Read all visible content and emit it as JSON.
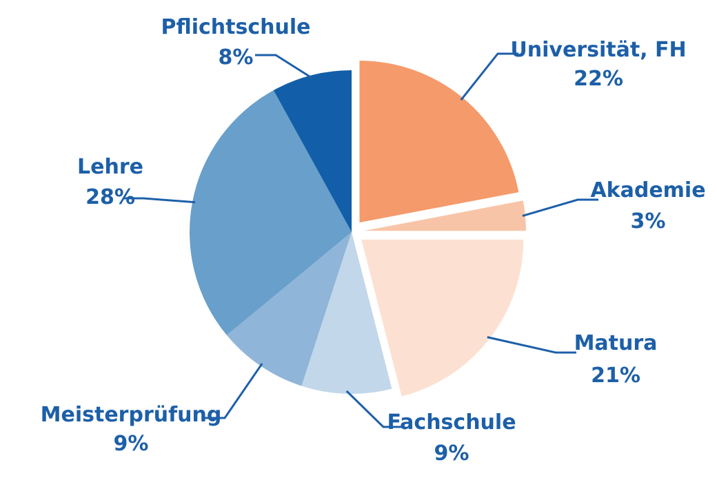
{
  "chart_data": {
    "type": "pie",
    "title": "",
    "slices": [
      {
        "label": "Universität, FH",
        "value": 22,
        "value_label": "22%",
        "color": "#f59a6a",
        "exploded": true
      },
      {
        "label": "Akademie",
        "value": 3,
        "value_label": "3%",
        "color": "#f8c4a8",
        "exploded": true
      },
      {
        "label": "Matura",
        "value": 21,
        "value_label": "21%",
        "color": "#fce1d2",
        "exploded": true
      },
      {
        "label": "Fachschule",
        "value": 9,
        "value_label": "9%",
        "color": "#c2d7ea",
        "exploded": false
      },
      {
        "label": "Meisterprüfung",
        "value": 9,
        "value_label": "9%",
        "color": "#8fb5d8",
        "exploded": false
      },
      {
        "label": "Lehre",
        "value": 28,
        "value_label": "28%",
        "color": "#689fcb",
        "exploded": false
      },
      {
        "label": "Pflichtschule",
        "value": 8,
        "value_label": "8%",
        "color": "#135ea8",
        "exploded": false
      }
    ],
    "start": "12 o'clock",
    "direction": "clockwise",
    "label_color": "#1d5fa8"
  }
}
